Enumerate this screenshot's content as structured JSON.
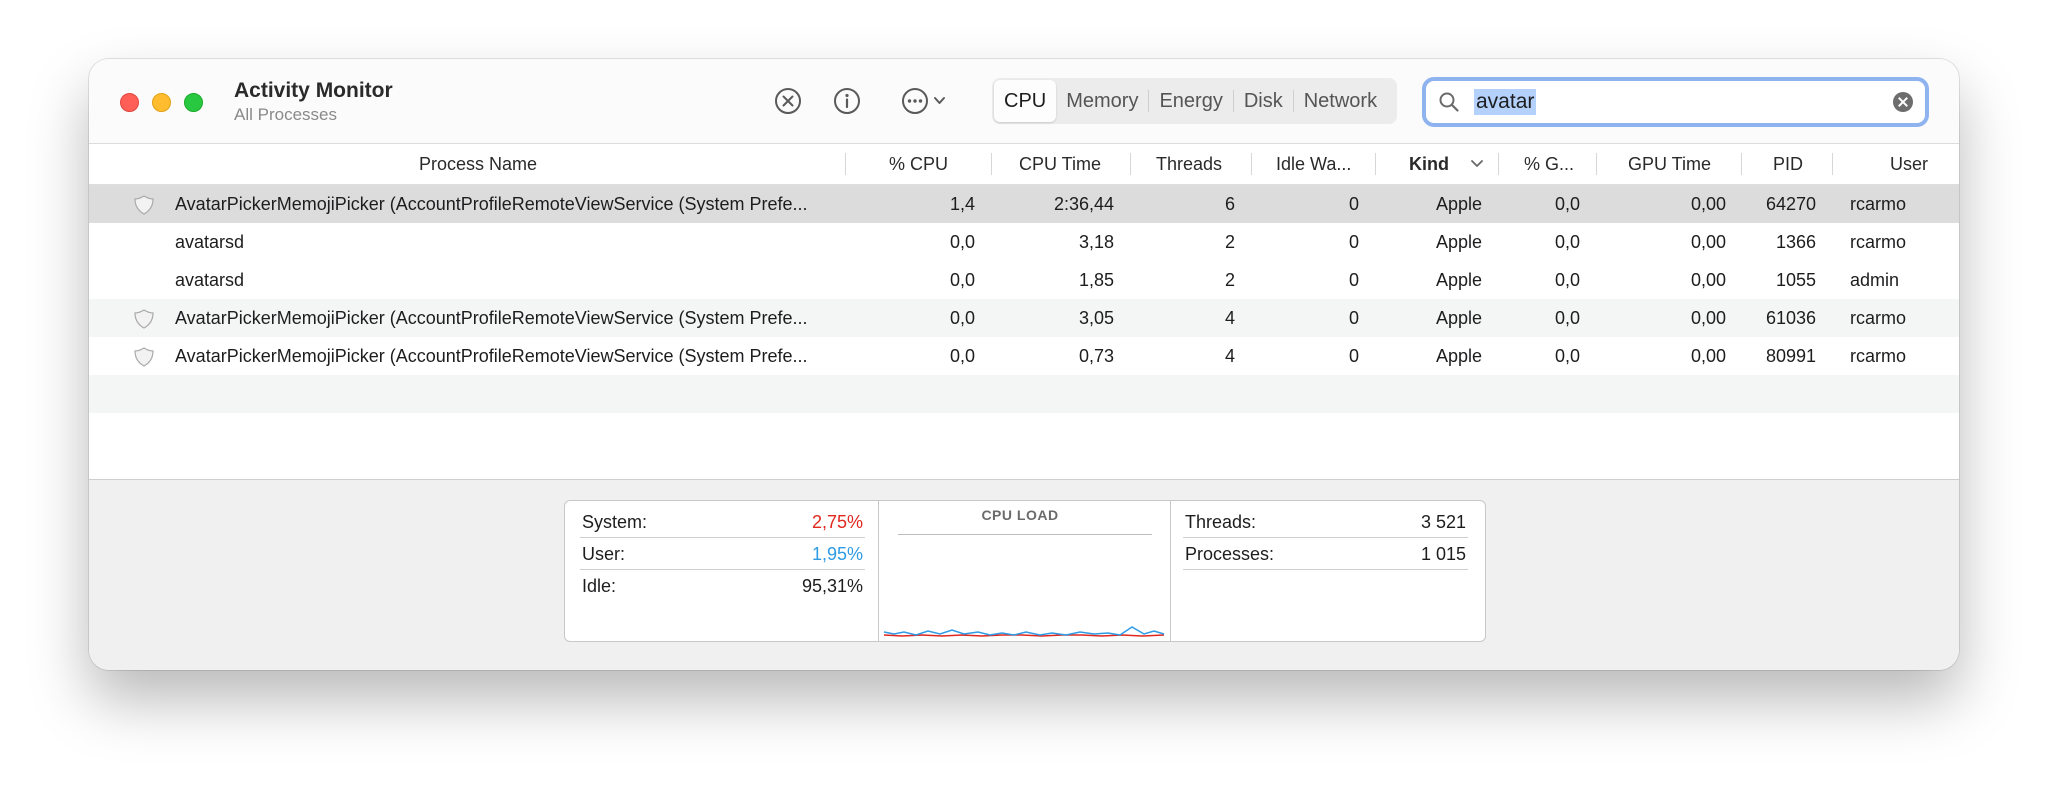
{
  "window": {
    "title": "Activity Monitor",
    "subtitle": "All Processes"
  },
  "toolbar": {
    "stop_icon": "xmark-circle-icon",
    "info_icon": "info-circle-icon",
    "more_icon": "ellipsis-circle-icon",
    "tabs": [
      "CPU",
      "Memory",
      "Energy",
      "Disk",
      "Network"
    ],
    "active_tab": "CPU"
  },
  "search": {
    "value": "avatar"
  },
  "columns": [
    "Process Name",
    "% CPU",
    "CPU Time",
    "Threads",
    "Idle Wa...",
    "Kind",
    "% G...",
    "GPU Time",
    "PID",
    "User"
  ],
  "sorted_column": "Kind",
  "rows": [
    {
      "icon": true,
      "name": "AvatarPickerMemojiPicker (AccountProfileRemoteViewService (System Prefe...",
      "cpu": "1,4",
      "cpu_time": "2:36,44",
      "threads": "6",
      "idle_wake": "0",
      "kind": "Apple",
      "gpu": "0,0",
      "gpu_time": "0,00",
      "pid": "64270",
      "user": "rcarmo"
    },
    {
      "icon": false,
      "name": "avatarsd",
      "cpu": "0,0",
      "cpu_time": "3,18",
      "threads": "2",
      "idle_wake": "0",
      "kind": "Apple",
      "gpu": "0,0",
      "gpu_time": "0,00",
      "pid": "1366",
      "user": "rcarmo"
    },
    {
      "icon": false,
      "name": "avatarsd",
      "cpu": "0,0",
      "cpu_time": "1,85",
      "threads": "2",
      "idle_wake": "0",
      "kind": "Apple",
      "gpu": "0,0",
      "gpu_time": "0,00",
      "pid": "1055",
      "user": "admin"
    },
    {
      "icon": true,
      "name": "AvatarPickerMemojiPicker (AccountProfileRemoteViewService (System Prefe...",
      "cpu": "0,0",
      "cpu_time": "3,05",
      "threads": "4",
      "idle_wake": "0",
      "kind": "Apple",
      "gpu": "0,0",
      "gpu_time": "0,00",
      "pid": "61036",
      "user": "rcarmo"
    },
    {
      "icon": true,
      "name": "AvatarPickerMemojiPicker (AccountProfileRemoteViewService (System Prefe...",
      "cpu": "0,0",
      "cpu_time": "0,73",
      "threads": "4",
      "idle_wake": "0",
      "kind": "Apple",
      "gpu": "0,0",
      "gpu_time": "0,00",
      "pid": "80991",
      "user": "rcarmo"
    }
  ],
  "stats": {
    "system": {
      "label": "System:",
      "value": "2,75%"
    },
    "user": {
      "label": "User:",
      "value": "1,95%"
    },
    "idle": {
      "label": "Idle:",
      "value": "95,31%"
    },
    "chart_title": "CPU LOAD",
    "threads": {
      "label": "Threads:",
      "value": "3 521"
    },
    "processes": {
      "label": "Processes:",
      "value": "1 015"
    }
  },
  "colors": {
    "system": "#e0281e",
    "user": "#2f9be4",
    "search_border": "#8fb3ef"
  }
}
